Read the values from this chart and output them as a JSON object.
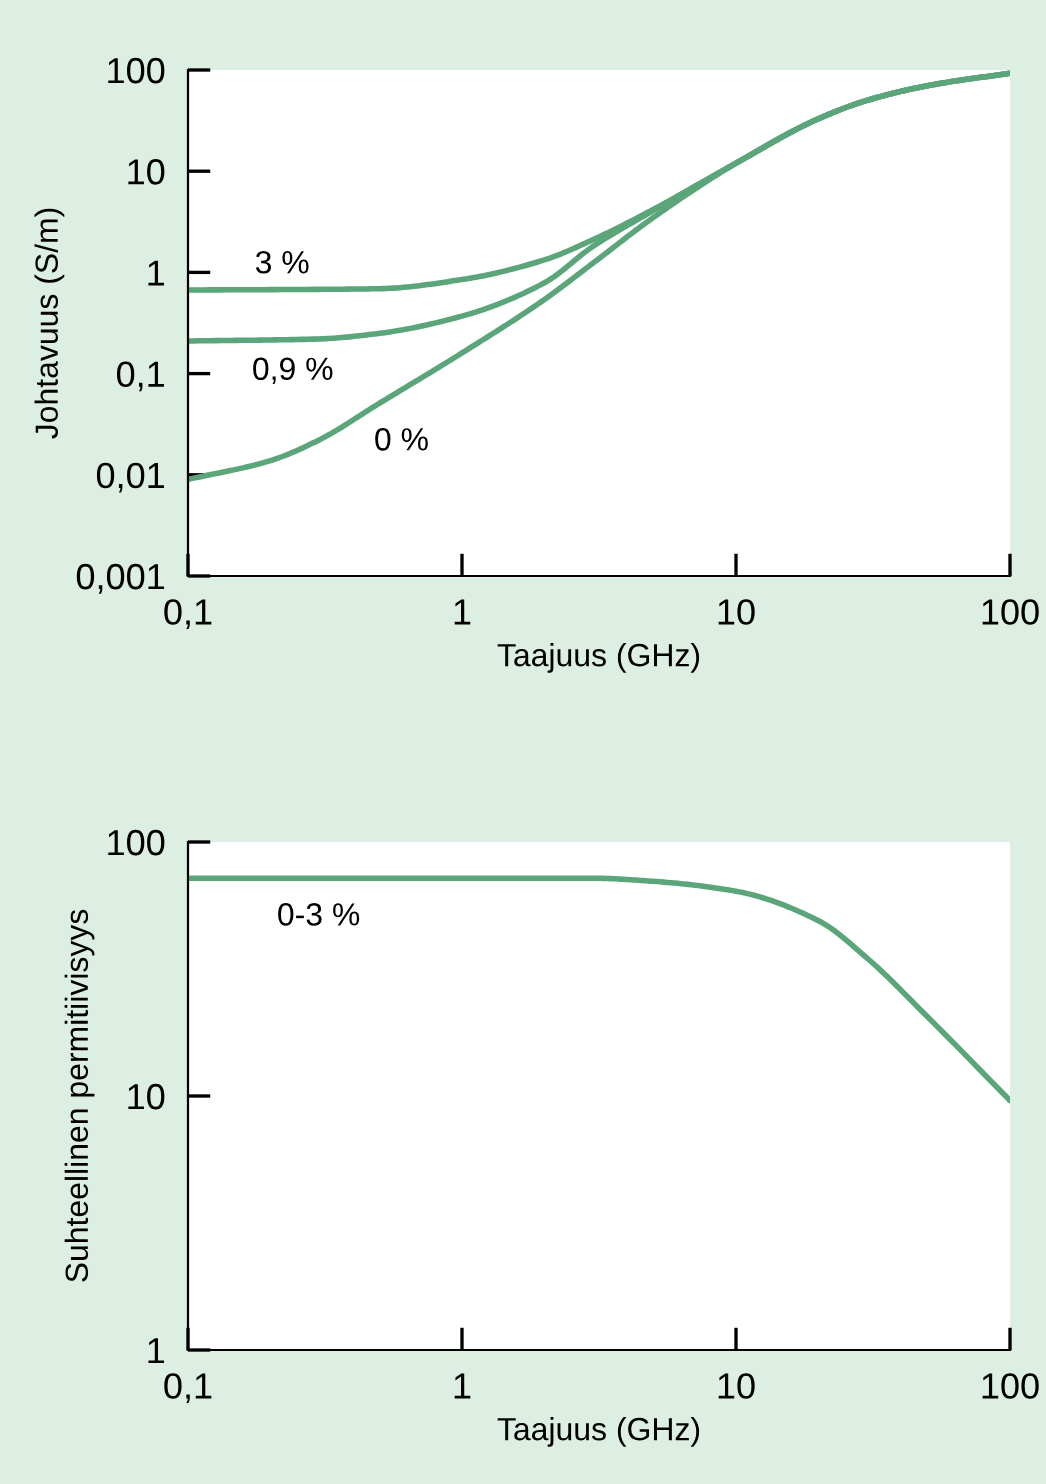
{
  "chart_data": [
    {
      "type": "line",
      "xlabel": "Taajuus (GHz)",
      "ylabel": "Johtavuus (S/m)",
      "log": "xy",
      "grid": false,
      "marker": "none",
      "line_style": "solid",
      "xlim": [
        0.1,
        100
      ],
      "ylim": [
        0.001,
        100
      ],
      "xticks": [
        {
          "value": 0.1,
          "label": "0,1"
        },
        1,
        10,
        100
      ],
      "yticks": [
        {
          "value": 0.001,
          "label": "0,001"
        },
        {
          "value": 0.01,
          "label": "0,01"
        },
        {
          "value": 0.1,
          "label": "0,1"
        },
        1,
        10,
        100
      ],
      "series": [
        {
          "name": "3 %",
          "color": "#5aa57a",
          "x": [
            0.1,
            0.3,
            0.5,
            1,
            2,
            3,
            5,
            10,
            20,
            30,
            50,
            100
          ],
          "values": [
            0.67,
            0.68,
            0.69,
            0.85,
            1.33,
            2.1,
            4.2,
            12,
            33,
            50,
            70,
            93
          ]
        },
        {
          "name": "0,9 %",
          "color": "#5aa57a",
          "x": [
            0.1,
            0.3,
            0.5,
            1,
            2,
            3,
            5,
            10,
            20,
            30,
            50,
            100
          ],
          "values": [
            0.21,
            0.22,
            0.25,
            0.37,
            0.79,
            1.8,
            4.1,
            12,
            33,
            50,
            70,
            93
          ]
        },
        {
          "name": "0 %",
          "color": "#5aa57a",
          "x": [
            0.1,
            0.2,
            0.3,
            0.5,
            1,
            2,
            3,
            5,
            10,
            20,
            30,
            50,
            100
          ],
          "values": [
            0.009,
            0.0138,
            0.022,
            0.051,
            0.16,
            0.54,
            1.23,
            3.5,
            12,
            33,
            50,
            70,
            93
          ]
        }
      ]
    },
    {
      "type": "line",
      "xlabel": "Taajuus (GHz)",
      "ylabel": "Suhteellinen permitiivisyys",
      "log": "xy",
      "grid": false,
      "marker": "none",
      "line_style": "solid",
      "xlim": [
        0.1,
        100
      ],
      "ylim": [
        1,
        100
      ],
      "xticks": [
        {
          "value": 0.1,
          "label": "0,1"
        },
        1,
        10,
        100
      ],
      "yticks": [
        1,
        10,
        100
      ],
      "series": [
        {
          "name": "0-3 %",
          "color": "#5aa57a",
          "x": [
            0.1,
            1,
            3,
            5,
            10,
            20,
            30,
            50,
            100
          ],
          "values": [
            72,
            72,
            72,
            70,
            64,
            49,
            35,
            20.5,
            9.6
          ]
        }
      ]
    }
  ]
}
